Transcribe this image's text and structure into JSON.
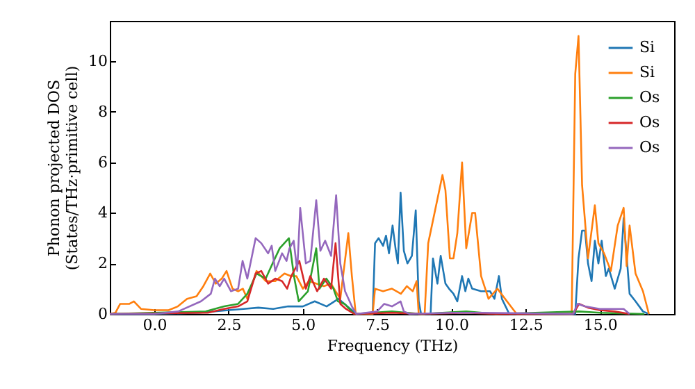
{
  "chart_data": {
    "type": "line",
    "xlabel": "Frequency (THz)",
    "ylabel": "Phonon projected DOS\n(States/THz·primitive cell)",
    "xlim": [
      -1.5,
      17.5
    ],
    "ylim": [
      0,
      11.6
    ],
    "xticks": [
      {
        "value": 0,
        "label": "0.0"
      },
      2.5,
      {
        "value": 5,
        "label": "5.0"
      },
      7.5,
      {
        "value": 10,
        "label": "10.0"
      },
      12.5,
      {
        "value": 15,
        "label": "15.0"
      }
    ],
    "yticks": [
      0,
      2,
      4,
      6,
      8,
      10
    ],
    "grid": false,
    "legend": "top right",
    "marker": "none",
    "line_style": "solid",
    "series": [
      {
        "name": "Si",
        "color": "#1f77b4",
        "x": [
          -1.5,
          0,
          1.5,
          2.5,
          3.0,
          3.5,
          4.0,
          4.5,
          5.0,
          5.4,
          5.8,
          6.2,
          6.6,
          6.8,
          7.35,
          7.43,
          7.55,
          7.7,
          7.8,
          7.9,
          8.02,
          8.13,
          8.2,
          8.29,
          8.4,
          8.52,
          8.67,
          8.8,
          8.9,
          8.98,
          9.3,
          9.38,
          9.53,
          9.64,
          9.8,
          9.92,
          10.07,
          10.2,
          10.36,
          10.47,
          10.57,
          10.7,
          11.0,
          11.3,
          11.45,
          11.6,
          11.7,
          11.95,
          14.17,
          14.28,
          14.4,
          14.5,
          14.6,
          14.72,
          14.83,
          14.95,
          15.06,
          15.2,
          15.3,
          15.5,
          15.7,
          15.8,
          16.0,
          16.2,
          16.45,
          16.65
        ],
        "values": [
          0,
          0,
          0.05,
          0.15,
          0.2,
          0.25,
          0.2,
          0.3,
          0.3,
          0.5,
          0.3,
          0.6,
          0.2,
          0,
          0,
          2.8,
          3.0,
          2.7,
          3.1,
          2.4,
          3.5,
          2.5,
          2.0,
          4.8,
          2.5,
          2.0,
          2.3,
          4.1,
          0.5,
          0,
          0,
          2.2,
          1.2,
          2.3,
          1.2,
          1.0,
          0.8,
          0.5,
          1.5,
          0.9,
          1.4,
          1.0,
          0.9,
          0.9,
          0.6,
          1.5,
          0.6,
          0,
          0,
          2.2,
          3.3,
          3.3,
          2.0,
          1.3,
          2.9,
          2.0,
          2.9,
          1.5,
          1.8,
          1.0,
          1.8,
          3.8,
          0.8,
          0.5,
          0.1,
          0
        ]
      },
      {
        "name": "Si",
        "color": "#ff7f0e",
        "x": [
          -1.5,
          -1.31,
          -1.15,
          -0.84,
          -0.69,
          -0.45,
          0,
          0.48,
          0.79,
          1.1,
          1.42,
          1.65,
          1.88,
          2.07,
          2.27,
          2.43,
          2.63,
          2.82,
          2.98,
          3.13,
          3.44,
          3.75,
          4.07,
          4.38,
          4.6,
          4.78,
          5.0,
          5.2,
          5.45,
          5.71,
          5.95,
          6.1,
          6.26,
          6.53,
          6.65,
          6.78,
          7.35,
          7.43,
          7.7,
          8.0,
          8.3,
          8.5,
          8.7,
          8.83,
          8.9,
          9.1,
          9.22,
          9.7,
          9.8,
          9.95,
          10.07,
          10.2,
          10.36,
          10.5,
          10.7,
          10.8,
          11.0,
          11.25,
          11.55,
          12.0,
          12.2,
          14.05,
          14.17,
          14.28,
          14.4,
          14.6,
          14.83,
          14.95,
          15.14,
          15.37,
          15.6,
          15.8,
          15.9,
          16.0,
          16.2,
          16.45,
          16.65
        ],
        "values": [
          0,
          0.05,
          0.4,
          0.4,
          0.5,
          0.2,
          0.15,
          0.15,
          0.3,
          0.6,
          0.7,
          1.1,
          1.6,
          1.2,
          1.4,
          1.7,
          1.0,
          0.9,
          1.0,
          0.6,
          1.7,
          1.3,
          1.3,
          1.6,
          1.5,
          1.5,
          1.0,
          1.3,
          1.2,
          1.1,
          1.2,
          0.9,
          0.6,
          3.2,
          1.5,
          0,
          0,
          1.0,
          0.9,
          1.0,
          0.8,
          1.1,
          0.9,
          1.3,
          0,
          0,
          2.8,
          5.5,
          4.9,
          2.2,
          2.2,
          3.2,
          6.0,
          2.6,
          4.0,
          4.0,
          1.5,
          0.6,
          1.0,
          0.3,
          0,
          0,
          9.5,
          11.0,
          5.1,
          2.2,
          4.3,
          2.8,
          2.4,
          1.7,
          3.5,
          4.2,
          1.9,
          3.5,
          1.6,
          0.9,
          0
        ]
      },
      {
        "name": "Os",
        "color": "#2ca02c",
        "x": [
          -1.5,
          1.73,
          2.35,
          2.82,
          3.13,
          3.44,
          3.75,
          3.98,
          4.22,
          4.53,
          4.7,
          4.86,
          5.17,
          5.45,
          5.56,
          5.79,
          6.03,
          6.18,
          6.4,
          6.73,
          8.0,
          8.5,
          9.0,
          10.5,
          11.5,
          14.3,
          15.0,
          16.5
        ],
        "values": [
          0,
          0.1,
          0.3,
          0.4,
          0.8,
          1.6,
          1.4,
          2.0,
          2.6,
          3.0,
          1.5,
          0.5,
          0.9,
          2.6,
          1.0,
          1.4,
          1.0,
          0.5,
          0.4,
          0,
          0.1,
          0.05,
          0,
          0.1,
          0,
          0.1,
          0.05,
          0
        ]
      },
      {
        "name": "Os",
        "color": "#d62728",
        "x": [
          -1.5,
          1.8,
          2.35,
          2.82,
          3.13,
          3.41,
          3.6,
          3.83,
          4.07,
          4.3,
          4.47,
          4.61,
          4.88,
          5.1,
          5.25,
          5.48,
          5.71,
          5.95,
          6.1,
          6.26,
          6.45,
          6.73,
          8.0,
          9.0,
          10.5,
          11.5,
          14.1,
          14.3,
          14.6,
          15.0,
          15.5,
          16.0
        ],
        "values": [
          0,
          0.05,
          0.2,
          0.3,
          0.5,
          1.6,
          1.7,
          1.2,
          1.4,
          1.3,
          1.0,
          1.5,
          2.1,
          1.0,
          1.5,
          0.9,
          1.4,
          1.0,
          2.8,
          0.4,
          0.2,
          0,
          0.05,
          0,
          0.05,
          0,
          0,
          0.4,
          0.25,
          0.15,
          0.1,
          0
        ]
      },
      {
        "name": "Os",
        "color": "#9467bd",
        "x": [
          -1.5,
          0,
          0.8,
          1.57,
          1.9,
          2.04,
          2.2,
          2.35,
          2.58,
          2.82,
          2.97,
          3.13,
          3.41,
          3.6,
          3.83,
          3.95,
          4.07,
          4.3,
          4.45,
          4.55,
          4.69,
          4.81,
          4.91,
          5.1,
          5.25,
          5.45,
          5.59,
          5.75,
          5.95,
          6.12,
          6.26,
          6.42,
          6.65,
          6.8,
          7.5,
          7.74,
          8.0,
          8.29,
          8.4,
          8.6,
          10.0,
          11.0,
          14.1,
          14.25,
          14.5,
          15.0,
          15.8,
          16.0
        ],
        "values": [
          0,
          0,
          0.1,
          0.5,
          0.8,
          1.4,
          1.1,
          1.4,
          0.9,
          1.0,
          2.1,
          1.4,
          3.0,
          2.8,
          2.4,
          2.7,
          1.7,
          2.4,
          2.1,
          2.6,
          2.9,
          1.7,
          4.2,
          2.0,
          2.1,
          4.5,
          2.5,
          2.9,
          2.3,
          4.7,
          2.0,
          0.9,
          0.3,
          0,
          0.1,
          0.4,
          0.3,
          0.5,
          0.1,
          0,
          0.05,
          0.05,
          0,
          0.4,
          0.3,
          0.2,
          0.2,
          0
        ]
      }
    ]
  }
}
